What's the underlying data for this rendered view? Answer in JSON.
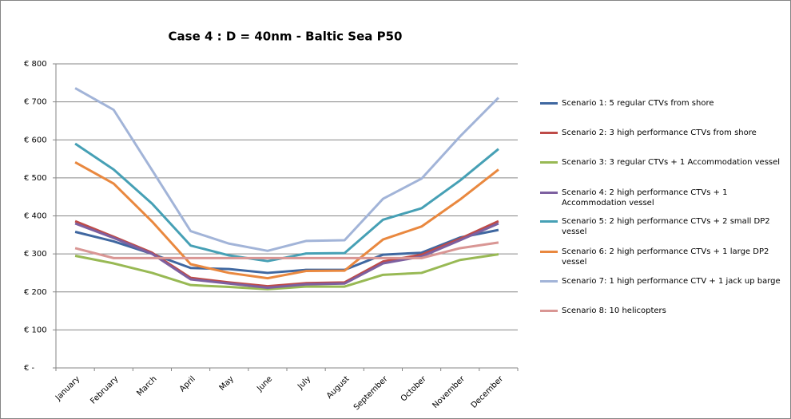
{
  "chart_data": {
    "type": "line",
    "title": "Case 4 : D = 40nm - Baltic Sea P50",
    "categories": [
      "January",
      "February",
      "March",
      "April",
      "May",
      "June",
      "July",
      "August",
      "September",
      "October",
      "November",
      "December"
    ],
    "series": [
      {
        "name": "Scenario 1: 5 regular CTVs from shore",
        "color": "#3f67a0",
        "values": [
          358,
          333,
          300,
          263,
          260,
          250,
          258,
          258,
          298,
          303,
          343,
          363
        ]
      },
      {
        "name": "Scenario 2: 3 high performance CTVs from shore",
        "color": "#be4b48",
        "values": [
          386,
          345,
          303,
          237,
          225,
          215,
          223,
          225,
          280,
          298,
          340,
          386
        ]
      },
      {
        "name": "Scenario 3: 3 regular CTVs + 1 Accommodation vessel",
        "color": "#98b954",
        "values": [
          295,
          275,
          250,
          218,
          213,
          207,
          214,
          214,
          245,
          250,
          284,
          299
        ]
      },
      {
        "name": "Scenario 4: 2 high performance CTVs + 1 Accommodation vessel",
        "color": "#7d60a0",
        "values": [
          380,
          342,
          300,
          233,
          222,
          211,
          220,
          222,
          275,
          293,
          336,
          380
        ]
      },
      {
        "name": "Scenario 5: 2 high performance CTVs + 2 small DP2 vessel",
        "color": "#46a0b5",
        "values": [
          590,
          522,
          432,
          322,
          296,
          281,
          301,
          302,
          390,
          420,
          493,
          576
        ]
      },
      {
        "name": "Scenario 6: 2 high performance CTVs + 1 large DP2 vessel",
        "color": "#e9883f",
        "values": [
          541,
          485,
          385,
          273,
          250,
          236,
          255,
          256,
          338,
          372,
          443,
          522
        ]
      },
      {
        "name": "Scenario 7: 1 high performance CTV + 1 jack up barge",
        "color": "#a2b4d8",
        "values": [
          736,
          679,
          520,
          360,
          327,
          308,
          334,
          336,
          445,
          498,
          609,
          711
        ]
      },
      {
        "name": "Scenario 8: 10 helicopters",
        "color": "#d99694",
        "values": [
          315,
          289,
          289,
          289,
          289,
          289,
          289,
          289,
          289,
          289,
          315,
          330
        ]
      }
    ],
    "ylim": [
      0,
      800
    ],
    "yticks": [
      {
        "value": 0,
        "label": "€ -"
      },
      {
        "value": 100,
        "label": "€ 100"
      },
      {
        "value": 200,
        "label": "€ 200"
      },
      {
        "value": 300,
        "label": "€ 300"
      },
      {
        "value": 400,
        "label": "€ 400"
      },
      {
        "value": 500,
        "label": "€ 500"
      },
      {
        "value": 600,
        "label": "€ 600"
      },
      {
        "value": 700,
        "label": "€ 700"
      },
      {
        "value": 800,
        "label": "€ 800"
      }
    ],
    "grid": true,
    "legend": "right"
  }
}
